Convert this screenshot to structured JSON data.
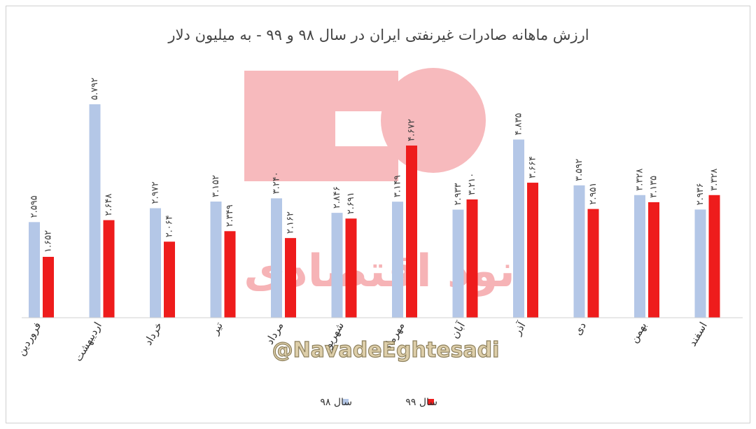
{
  "chart_data": {
    "type": "bar",
    "title": "ارزش ماهانه صادرات غیرنفتی ایران در سال ۹۸ و ۹۹ - به میلیون دلار",
    "categories": [
      "فروردین",
      "اردیبهشت",
      "خرداد",
      "تیر",
      "مرداد",
      "شهریور",
      "مهرماه",
      "آبان",
      "آذر",
      "دی",
      "بهمن",
      "اسفند"
    ],
    "series": [
      {
        "name": "سال ۹۸",
        "color": "#b4c7e7",
        "values": [
          2.595,
          5.792,
          2.972,
          3.152,
          3.24,
          2.846,
          3.149,
          2.933,
          4.835,
          3.592,
          3.328,
          2.936
        ],
        "labels": [
          "۲.۵۹۵",
          "۵.۷۹۲",
          "۲.۹۷۲",
          "۳.۱۵۲",
          "۳.۲۴۰",
          "۲.۸۴۶",
          "۳.۱۴۹",
          "۲.۹۳۳",
          "۴.۸۳۵",
          "۳.۵۹۲",
          "۳.۳۲۸",
          "۲.۹۳۶"
        ]
      },
      {
        "name": "سال ۹۹",
        "color": "#ee1c1c",
        "values": [
          1.652,
          2.648,
          2.064,
          2.349,
          2.162,
          2.691,
          4.672,
          3.21,
          3.664,
          2.951,
          3.135,
          3.328
        ],
        "labels": [
          "۱.۶۵۲",
          "۲.۶۴۸",
          "۲.۰۶۴",
          "۲.۳۴۹",
          "۲.۱۶۲",
          "۲.۶۹۱",
          "۴.۶۷۲",
          "۳.۲۱۰",
          "۳.۶۶۴",
          "۲.۹۵۱",
          "۳.۱۳۵",
          "۳.۳۲۸"
        ]
      }
    ],
    "legend_position": "bottom",
    "grid": false
  },
  "watermark": {
    "brand_text": "نود اقتصادی",
    "handle": "@NavadeEghtesadi"
  }
}
